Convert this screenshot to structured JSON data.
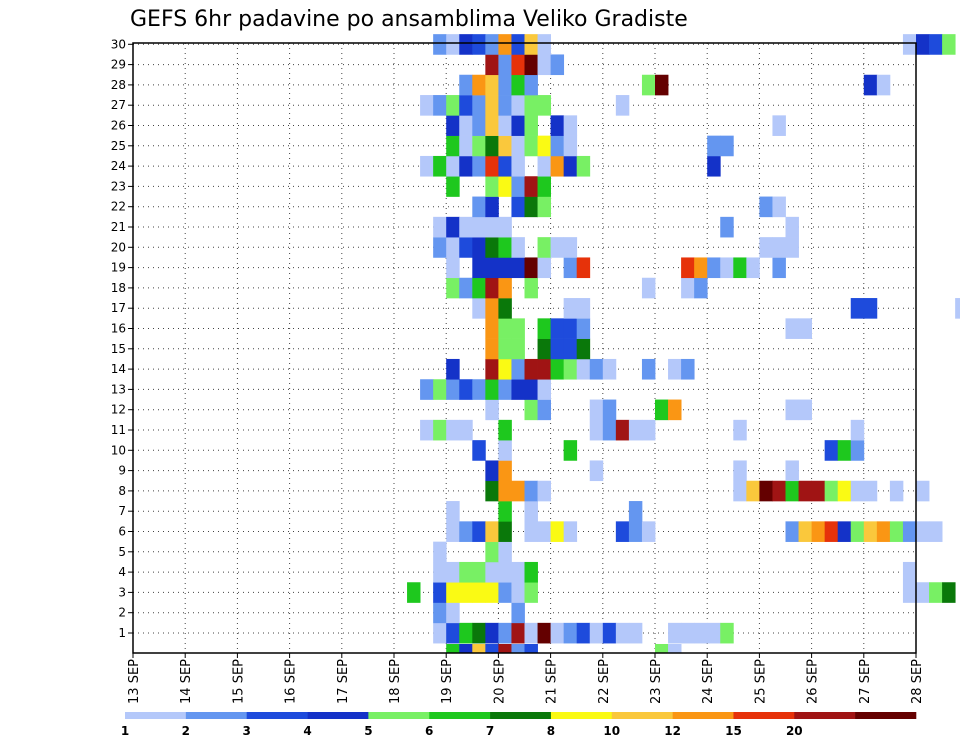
{
  "chart_data": {
    "type": "heatmap",
    "title": "GEFS 6hr padavine po ansamblima Veliko Gradiste",
    "xlabel": "",
    "ylabel": "",
    "y_range": [
      1,
      30
    ],
    "x_ticks": [
      "13 SEP",
      "14 SEP",
      "15 SEP",
      "16 SEP",
      "17 SEP",
      "18 SEP",
      "19 SEP",
      "20 SEP",
      "21 SEP",
      "22 SEP",
      "23 SEP",
      "24 SEP",
      "25 SEP",
      "26 SEP",
      "27 SEP",
      "28 SEP"
    ],
    "y_ticks": [
      "1",
      "2",
      "3",
      "4",
      "5",
      "6",
      "7",
      "8",
      "9",
      "10",
      "11",
      "12",
      "13",
      "14",
      "15",
      "16",
      "17",
      "18",
      "19",
      "20",
      "21",
      "22",
      "23",
      "24",
      "25",
      "26",
      "27",
      "28",
      "29",
      "30"
    ],
    "grid": true,
    "legend_position": "bottom",
    "legend": {
      "bins": [
        1,
        2,
        3,
        4,
        5,
        6,
        7,
        8,
        10,
        12,
        15,
        20
      ],
      "labels": [
        "1",
        "2",
        "3",
        "4",
        "5",
        "6",
        "7",
        "8",
        "10",
        "12",
        "15",
        "20"
      ],
      "colors": [
        "#b4c8fa",
        "#6496f0",
        "#1e4bdc",
        "#1432c8",
        "#78f064",
        "#1ec81e",
        "#0a780a",
        "#fafa14",
        "#fac83c",
        "#fa9614",
        "#e6320a",
        "#a01414",
        "#640000"
      ]
    },
    "x_unit": "6-hour step from 13 SEP 00Z",
    "cells": [
      [
        1,
        23,
        0
      ],
      [
        1,
        24,
        2
      ],
      [
        1,
        25,
        5
      ],
      [
        1,
        26,
        6
      ],
      [
        1,
        27,
        3
      ],
      [
        1,
        28,
        1
      ],
      [
        1,
        29,
        11
      ],
      [
        1,
        30,
        0
      ],
      [
        1,
        31,
        12
      ],
      [
        1,
        32,
        0
      ],
      [
        1,
        33,
        1
      ],
      [
        1,
        34,
        2
      ],
      [
        1,
        35,
        0
      ],
      [
        1,
        36,
        2
      ],
      [
        1,
        37,
        0
      ],
      [
        1,
        38,
        0
      ],
      [
        1,
        41,
        0
      ],
      [
        1,
        42,
        0
      ],
      [
        1,
        43,
        0
      ],
      [
        1,
        44,
        0
      ],
      [
        1,
        45,
        4
      ],
      [
        2,
        23,
        1
      ],
      [
        2,
        24,
        0
      ],
      [
        2,
        29,
        1
      ],
      [
        3,
        21,
        5
      ],
      [
        3,
        23,
        2
      ],
      [
        3,
        24,
        7
      ],
      [
        3,
        25,
        7
      ],
      [
        3,
        26,
        7
      ],
      [
        3,
        27,
        7
      ],
      [
        3,
        28,
        1
      ],
      [
        3,
        29,
        0
      ],
      [
        3,
        30,
        4
      ],
      [
        3,
        59,
        0
      ],
      [
        3,
        60,
        0
      ],
      [
        3,
        61,
        4
      ],
      [
        3,
        62,
        6
      ],
      [
        3,
        70,
        0
      ],
      [
        3,
        71,
        9
      ],
      [
        3,
        74,
        11
      ],
      [
        3,
        76,
        4
      ],
      [
        3,
        77,
        10
      ],
      [
        3,
        78,
        10
      ],
      [
        3,
        80,
        4
      ],
      [
        3,
        81,
        0
      ],
      [
        3,
        82,
        0
      ],
      [
        4,
        23,
        0
      ],
      [
        4,
        24,
        0
      ],
      [
        4,
        25,
        4
      ],
      [
        4,
        26,
        4
      ],
      [
        4,
        27,
        0
      ],
      [
        4,
        28,
        0
      ],
      [
        4,
        29,
        0
      ],
      [
        4,
        30,
        5
      ],
      [
        4,
        59,
        0
      ],
      [
        4,
        79,
        10
      ],
      [
        4,
        80,
        6
      ],
      [
        5,
        23,
        0
      ],
      [
        5,
        27,
        4
      ],
      [
        5,
        28,
        0
      ],
      [
        5,
        69,
        2
      ],
      [
        5,
        71,
        0
      ],
      [
        5,
        72,
        4
      ],
      [
        5,
        73,
        0
      ],
      [
        5,
        74,
        0
      ],
      [
        5,
        75,
        8
      ],
      [
        5,
        76,
        1
      ],
      [
        6,
        24,
        0
      ],
      [
        6,
        25,
        1
      ],
      [
        6,
        26,
        2
      ],
      [
        6,
        27,
        8
      ],
      [
        6,
        28,
        6
      ],
      [
        6,
        30,
        0
      ],
      [
        6,
        31,
        0
      ],
      [
        6,
        32,
        7
      ],
      [
        6,
        33,
        0
      ],
      [
        6,
        37,
        2
      ],
      [
        6,
        38,
        1
      ],
      [
        6,
        39,
        0
      ],
      [
        6,
        50,
        1
      ],
      [
        6,
        51,
        8
      ],
      [
        6,
        52,
        9
      ],
      [
        6,
        53,
        10
      ],
      [
        6,
        54,
        3
      ],
      [
        6,
        55,
        4
      ],
      [
        6,
        56,
        8
      ],
      [
        6,
        57,
        9
      ],
      [
        6,
        58,
        4
      ],
      [
        6,
        59,
        1
      ],
      [
        6,
        60,
        0
      ],
      [
        6,
        61,
        0
      ],
      [
        6,
        64,
        0
      ],
      [
        6,
        76,
        0
      ],
      [
        6,
        77,
        1
      ],
      [
        6,
        78,
        2
      ],
      [
        7,
        24,
        0
      ],
      [
        7,
        28,
        5
      ],
      [
        7,
        30,
        0
      ],
      [
        7,
        38,
        1
      ],
      [
        8,
        27,
        6
      ],
      [
        8,
        28,
        9
      ],
      [
        8,
        29,
        9
      ],
      [
        8,
        30,
        1
      ],
      [
        8,
        31,
        0
      ],
      [
        8,
        46,
        0
      ],
      [
        8,
        47,
        8
      ],
      [
        8,
        48,
        12
      ],
      [
        8,
        49,
        11
      ],
      [
        8,
        50,
        5
      ],
      [
        8,
        51,
        11
      ],
      [
        8,
        52,
        11
      ],
      [
        8,
        53,
        4
      ],
      [
        8,
        54,
        7
      ],
      [
        8,
        55,
        0
      ],
      [
        8,
        56,
        0
      ],
      [
        8,
        58,
        0
      ],
      [
        8,
        60,
        0
      ],
      [
        8,
        89,
        1
      ],
      [
        9,
        27,
        3
      ],
      [
        9,
        28,
        9
      ],
      [
        9,
        35,
        0
      ],
      [
        9,
        46,
        0
      ],
      [
        9,
        50,
        0
      ],
      [
        10,
        26,
        2
      ],
      [
        10,
        28,
        0
      ],
      [
        10,
        33,
        5
      ],
      [
        10,
        53,
        2
      ],
      [
        10,
        54,
        5
      ],
      [
        10,
        55,
        1
      ],
      [
        11,
        22,
        0
      ],
      [
        11,
        23,
        4
      ],
      [
        11,
        24,
        0
      ],
      [
        11,
        25,
        0
      ],
      [
        11,
        28,
        5
      ],
      [
        11,
        35,
        0
      ],
      [
        11,
        36,
        1
      ],
      [
        11,
        37,
        11
      ],
      [
        11,
        38,
        0
      ],
      [
        11,
        39,
        0
      ],
      [
        11,
        46,
        0
      ],
      [
        11,
        55,
        0
      ],
      [
        12,
        27,
        0
      ],
      [
        12,
        30,
        4
      ],
      [
        12,
        31,
        1
      ],
      [
        12,
        35,
        0
      ],
      [
        12,
        36,
        1
      ],
      [
        12,
        40,
        5
      ],
      [
        12,
        41,
        9
      ],
      [
        12,
        50,
        0
      ],
      [
        12,
        51,
        0
      ],
      [
        13,
        22,
        1
      ],
      [
        13,
        23,
        4
      ],
      [
        13,
        24,
        1
      ],
      [
        13,
        25,
        2
      ],
      [
        13,
        26,
        1
      ],
      [
        13,
        27,
        5
      ],
      [
        13,
        28,
        1
      ],
      [
        13,
        29,
        3
      ],
      [
        13,
        30,
        3
      ],
      [
        13,
        31,
        0
      ],
      [
        13,
        77,
        1
      ],
      [
        13,
        78,
        7
      ],
      [
        13,
        79,
        0
      ],
      [
        14,
        24,
        3
      ],
      [
        14,
        27,
        11
      ],
      [
        14,
        28,
        7
      ],
      [
        14,
        29,
        1
      ],
      [
        14,
        30,
        11
      ],
      [
        14,
        31,
        11
      ],
      [
        14,
        32,
        5
      ],
      [
        14,
        33,
        4
      ],
      [
        14,
        34,
        0
      ],
      [
        14,
        35,
        1
      ],
      [
        14,
        36,
        0
      ],
      [
        14,
        39,
        1
      ],
      [
        14,
        41,
        0
      ],
      [
        14,
        42,
        1
      ],
      [
        14,
        76,
        0
      ],
      [
        14,
        77,
        4
      ],
      [
        14,
        78,
        0
      ],
      [
        15,
        27,
        9
      ],
      [
        15,
        28,
        4
      ],
      [
        15,
        29,
        4
      ],
      [
        15,
        31,
        6
      ],
      [
        15,
        32,
        2
      ],
      [
        15,
        33,
        2
      ],
      [
        15,
        34,
        6
      ],
      [
        16,
        27,
        9
      ],
      [
        16,
        28,
        4
      ],
      [
        16,
        29,
        4
      ],
      [
        16,
        31,
        5
      ],
      [
        16,
        32,
        2
      ],
      [
        16,
        33,
        2
      ],
      [
        16,
        34,
        1
      ],
      [
        16,
        50,
        0
      ],
      [
        16,
        51,
        0
      ],
      [
        17,
        26,
        0
      ],
      [
        17,
        27,
        9
      ],
      [
        17,
        28,
        6
      ],
      [
        17,
        33,
        0
      ],
      [
        17,
        34,
        0
      ],
      [
        17,
        55,
        2
      ],
      [
        17,
        56,
        2
      ],
      [
        17,
        63,
        0
      ],
      [
        17,
        64,
        1
      ],
      [
        18,
        24,
        4
      ],
      [
        18,
        25,
        1
      ],
      [
        18,
        26,
        5
      ],
      [
        18,
        27,
        11
      ],
      [
        18,
        28,
        9
      ],
      [
        18,
        30,
        4
      ],
      [
        18,
        39,
        0
      ],
      [
        18,
        42,
        0
      ],
      [
        18,
        43,
        1
      ],
      [
        19,
        24,
        0
      ],
      [
        19,
        26,
        3
      ],
      [
        19,
        27,
        3
      ],
      [
        19,
        28,
        3
      ],
      [
        19,
        29,
        3
      ],
      [
        19,
        30,
        12
      ],
      [
        19,
        31,
        0
      ],
      [
        19,
        33,
        1
      ],
      [
        19,
        34,
        10
      ],
      [
        19,
        42,
        10
      ],
      [
        19,
        43,
        9
      ],
      [
        19,
        44,
        1
      ],
      [
        19,
        45,
        0
      ],
      [
        19,
        46,
        5
      ],
      [
        19,
        47,
        0
      ],
      [
        19,
        49,
        1
      ],
      [
        20,
        23,
        1
      ],
      [
        20,
        24,
        0
      ],
      [
        20,
        25,
        2
      ],
      [
        20,
        26,
        3
      ],
      [
        20,
        27,
        6
      ],
      [
        20,
        28,
        5
      ],
      [
        20,
        29,
        0
      ],
      [
        20,
        31,
        4
      ],
      [
        20,
        32,
        0
      ],
      [
        20,
        33,
        0
      ],
      [
        20,
        48,
        0
      ],
      [
        20,
        49,
        0
      ],
      [
        20,
        50,
        0
      ],
      [
        20,
        78,
        1
      ],
      [
        20,
        79,
        0
      ],
      [
        21,
        23,
        0
      ],
      [
        21,
        24,
        3
      ],
      [
        21,
        25,
        0
      ],
      [
        21,
        26,
        0
      ],
      [
        21,
        27,
        0
      ],
      [
        21,
        28,
        0
      ],
      [
        21,
        45,
        1
      ],
      [
        21,
        50,
        0
      ],
      [
        22,
        26,
        1
      ],
      [
        22,
        27,
        3
      ],
      [
        22,
        29,
        2
      ],
      [
        22,
        30,
        6
      ],
      [
        22,
        31,
        4
      ],
      [
        22,
        48,
        1
      ],
      [
        22,
        49,
        0
      ],
      [
        22,
        73,
        1
      ],
      [
        22,
        79,
        3
      ],
      [
        22,
        80,
        1
      ],
      [
        23,
        24,
        5
      ],
      [
        23,
        27,
        4
      ],
      [
        23,
        28,
        7
      ],
      [
        23,
        29,
        1
      ],
      [
        23,
        30,
        11
      ],
      [
        23,
        31,
        5
      ],
      [
        24,
        22,
        0
      ],
      [
        24,
        23,
        5
      ],
      [
        24,
        24,
        0
      ],
      [
        24,
        25,
        3
      ],
      [
        24,
        26,
        1
      ],
      [
        24,
        27,
        10
      ],
      [
        24,
        28,
        2
      ],
      [
        24,
        29,
        0
      ],
      [
        24,
        31,
        0
      ],
      [
        24,
        32,
        9
      ],
      [
        24,
        33,
        3
      ],
      [
        24,
        34,
        4
      ],
      [
        24,
        44,
        3
      ],
      [
        24,
        89,
        0
      ],
      [
        25,
        24,
        5
      ],
      [
        25,
        25,
        0
      ],
      [
        25,
        26,
        4
      ],
      [
        25,
        27,
        6
      ],
      [
        25,
        28,
        8
      ],
      [
        25,
        29,
        0
      ],
      [
        25,
        30,
        4
      ],
      [
        25,
        31,
        7
      ],
      [
        25,
        32,
        1
      ],
      [
        25,
        33,
        0
      ],
      [
        25,
        44,
        1
      ],
      [
        25,
        45,
        1
      ],
      [
        26,
        24,
        3
      ],
      [
        26,
        25,
        0
      ],
      [
        26,
        26,
        1
      ],
      [
        26,
        27,
        8
      ],
      [
        26,
        28,
        0
      ],
      [
        26,
        29,
        3
      ],
      [
        26,
        30,
        4
      ],
      [
        26,
        32,
        3
      ],
      [
        26,
        33,
        0
      ],
      [
        26,
        49,
        0
      ],
      [
        26,
        71,
        2
      ],
      [
        26,
        72,
        0
      ],
      [
        26,
        73,
        2
      ],
      [
        26,
        75,
        0
      ],
      [
        26,
        79,
        4
      ],
      [
        26,
        80,
        9
      ],
      [
        27,
        22,
        0
      ],
      [
        27,
        23,
        1
      ],
      [
        27,
        24,
        4
      ],
      [
        27,
        25,
        2
      ],
      [
        27,
        26,
        1
      ],
      [
        27,
        27,
        8
      ],
      [
        27,
        28,
        1
      ],
      [
        27,
        29,
        0
      ],
      [
        27,
        30,
        4
      ],
      [
        27,
        31,
        4
      ],
      [
        27,
        37,
        0
      ],
      [
        28,
        25,
        1
      ],
      [
        28,
        26,
        9
      ],
      [
        28,
        27,
        8
      ],
      [
        28,
        28,
        1
      ],
      [
        28,
        29,
        5
      ],
      [
        28,
        30,
        1
      ],
      [
        28,
        39,
        4
      ],
      [
        28,
        40,
        12
      ],
      [
        28,
        56,
        3
      ],
      [
        28,
        57,
        0
      ],
      [
        29,
        27,
        11
      ],
      [
        29,
        28,
        1
      ],
      [
        29,
        29,
        10
      ],
      [
        29,
        30,
        12
      ],
      [
        29,
        31,
        0
      ],
      [
        29,
        32,
        1
      ],
      [
        30,
        23,
        1
      ],
      [
        30,
        24,
        0
      ],
      [
        30,
        25,
        3
      ],
      [
        30,
        26,
        2
      ],
      [
        30,
        27,
        1
      ],
      [
        30,
        28,
        9
      ],
      [
        30,
        29,
        2
      ],
      [
        30,
        30,
        8
      ],
      [
        30,
        31,
        0
      ],
      [
        30,
        59,
        0
      ],
      [
        30,
        60,
        3
      ],
      [
        30,
        61,
        2
      ],
      [
        30,
        62,
        4
      ]
    ],
    "bottom_strip": [
      [
        24,
        5
      ],
      [
        25,
        3
      ],
      [
        26,
        8
      ],
      [
        27,
        2
      ],
      [
        28,
        11
      ],
      [
        29,
        1
      ],
      [
        30,
        2
      ],
      [
        40,
        4
      ],
      [
        41,
        0
      ]
    ]
  }
}
